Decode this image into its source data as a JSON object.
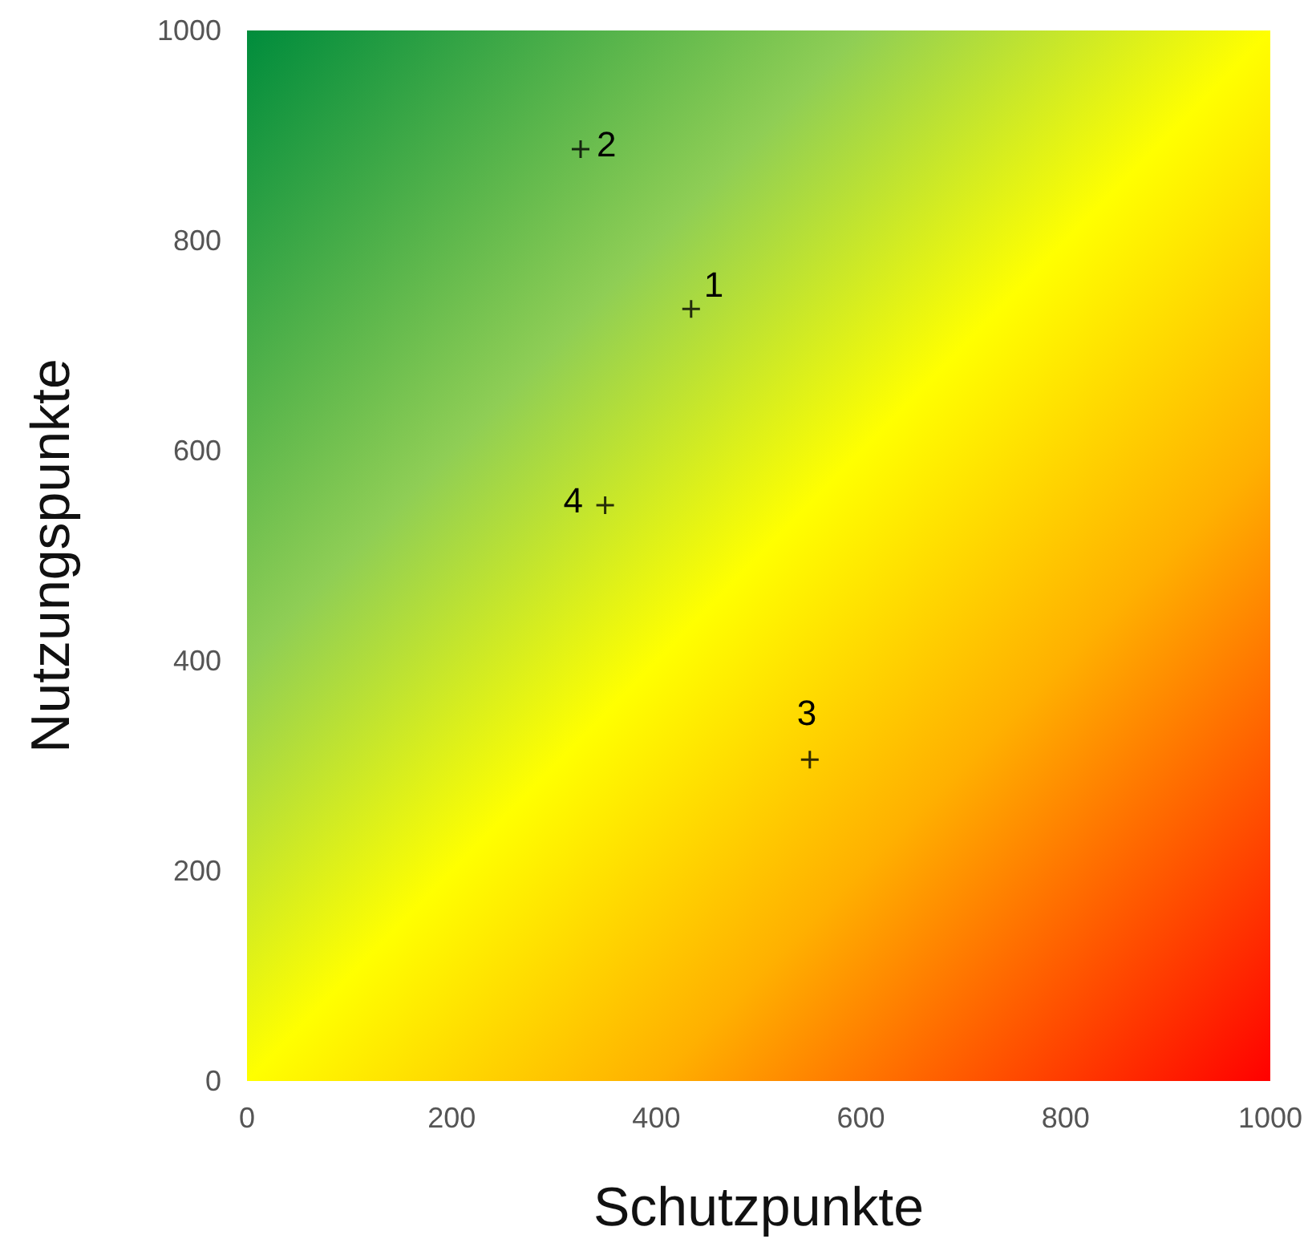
{
  "chart_data": {
    "type": "scatter",
    "xlabel": "Schutzpunkte",
    "ylabel": "Nutzungspunkte",
    "x": [
      434,
      326,
      550,
      350
    ],
    "series": [
      {
        "color": "#000000",
        "values": [
          735,
          887,
          306,
          548
        ]
      }
    ],
    "annotations": [
      {
        "text": "1",
        "x": 434,
        "y": 735
      },
      {
        "text": "2",
        "x": 326,
        "y": 887
      },
      {
        "text": "3",
        "x": 550,
        "y": 306
      },
      {
        "text": "4",
        "x": 350,
        "y": 548
      }
    ],
    "xlim": [
      0,
      1000
    ],
    "ylim": [
      0,
      1000
    ],
    "xticks": [
      0,
      200,
      400,
      600,
      800,
      1000
    ],
    "yticks": [
      0,
      200,
      400,
      600,
      800,
      1000
    ],
    "grid": false,
    "marker": "cross"
  }
}
